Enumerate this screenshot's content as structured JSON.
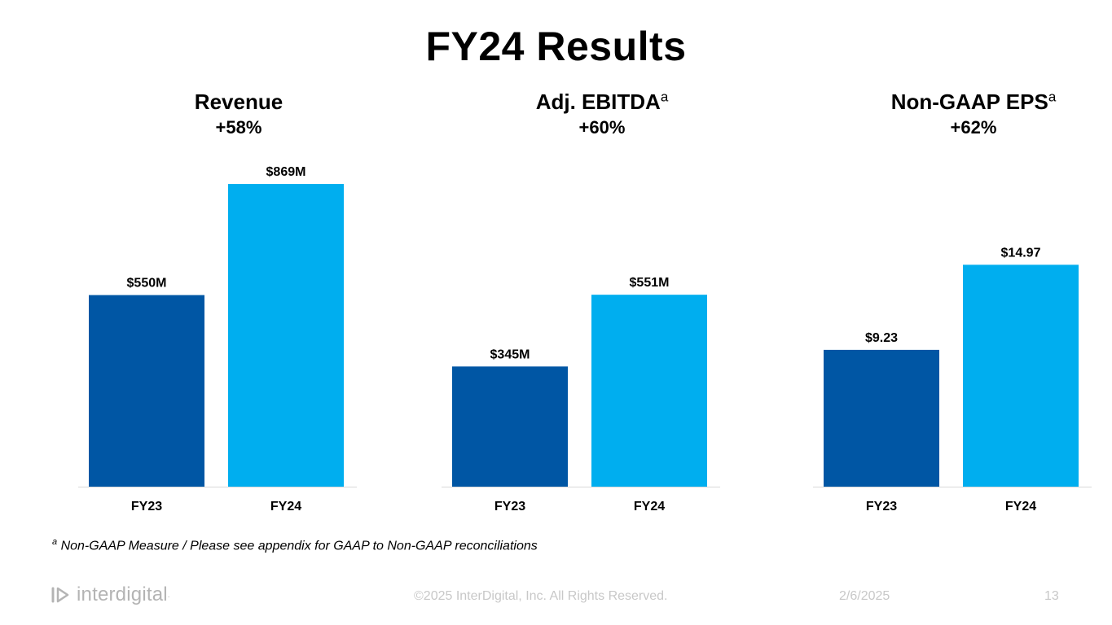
{
  "title": "FY24 Results",
  "colors": {
    "fy23": "#0056a4",
    "fy24": "#00aeef",
    "axis": "#d9d9d9"
  },
  "chart_data": [
    {
      "type": "bar",
      "title": "Revenue",
      "title_marker": "",
      "growth": "+58%",
      "categories": [
        "FY23",
        "FY24"
      ],
      "values": [
        550,
        869
      ],
      "labels": [
        "$550M",
        "$869M"
      ],
      "ylim": [
        0,
        1000
      ]
    },
    {
      "type": "bar",
      "title": "Adj. EBITDA",
      "title_marker": "a",
      "growth": "+60%",
      "categories": [
        "FY23",
        "FY24"
      ],
      "values": [
        345,
        551
      ],
      "labels": [
        "$345M",
        "$551M"
      ],
      "ylim": [
        0,
        1000
      ]
    },
    {
      "type": "bar",
      "title": "Non-GAAP EPS",
      "title_marker": "a",
      "growth": "+62%",
      "categories": [
        "FY23",
        "FY24"
      ],
      "values": [
        9.23,
        14.97
      ],
      "labels": [
        "$9.23",
        "$14.97"
      ],
      "ylim": [
        0,
        23.5
      ]
    }
  ],
  "footnote": {
    "marker": "a",
    "text": "Non-GAAP Measure / Please see appendix for GAAP to Non-GAAP reconciliations"
  },
  "footer": {
    "logo_text": "interdigital",
    "logo_dot": ".",
    "copyright": "©2025 InterDigital, Inc. All Rights Reserved.",
    "date": "2/6/2025",
    "page": "13"
  }
}
